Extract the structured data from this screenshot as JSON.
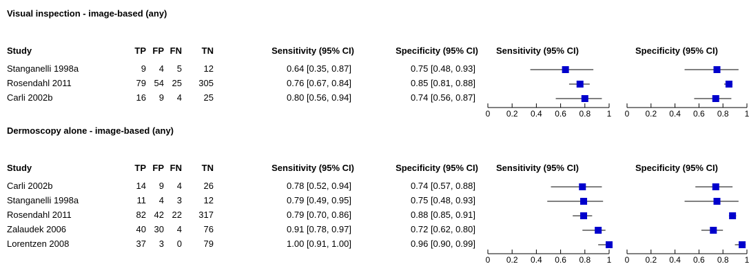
{
  "headers": {
    "study": "Study",
    "tp": "TP",
    "fp": "FP",
    "fn": "FN",
    "tn": "TN",
    "sensitivity": "Sensitivity (95% CI)",
    "specificity": "Specificity (95% CI)"
  },
  "sections": [
    {
      "title": "Visual inspection - image-based (any)",
      "rows": [
        {
          "study": "Stanganelli 1998a",
          "tp": "9",
          "fp": "4",
          "fn": "5",
          "tn": "12",
          "sens_text": "0.64 [0.35, 0.87]",
          "spec_text": "0.75 [0.48, 0.93]"
        },
        {
          "study": "Rosendahl 2011",
          "tp": "79",
          "fp": "54",
          "fn": "25",
          "tn": "305",
          "sens_text": "0.76 [0.67, 0.84]",
          "spec_text": "0.85 [0.81, 0.88]"
        },
        {
          "study": "Carli 2002b",
          "tp": "16",
          "fp": "9",
          "fn": "4",
          "tn": "25",
          "sens_text": "0.80 [0.56, 0.94]",
          "spec_text": "0.74 [0.56, 0.87]"
        }
      ]
    },
    {
      "title": "Dermoscopy alone - image-based (any)",
      "rows": [
        {
          "study": "Carli 2002b",
          "tp": "14",
          "fp": "9",
          "fn": "4",
          "tn": "26",
          "sens_text": "0.78 [0.52, 0.94]",
          "spec_text": "0.74 [0.57, 0.88]"
        },
        {
          "study": "Stanganelli 1998a",
          "tp": "11",
          "fp": "4",
          "fn": "3",
          "tn": "12",
          "sens_text": "0.79 [0.49, 0.95]",
          "spec_text": "0.75 [0.48, 0.93]"
        },
        {
          "study": "Rosendahl 2011",
          "tp": "82",
          "fp": "42",
          "fn": "22",
          "tn": "317",
          "sens_text": "0.79 [0.70, 0.86]",
          "spec_text": "0.88 [0.85, 0.91]"
        },
        {
          "study": "Zalaudek 2006",
          "tp": "40",
          "fp": "30",
          "fn": "4",
          "tn": "76",
          "sens_text": "0.91 [0.78, 0.97]",
          "spec_text": "0.72 [0.62, 0.80]"
        },
        {
          "study": "Lorentzen 2008",
          "tp": "37",
          "fp": "3",
          "fn": "0",
          "tn": "79",
          "sens_text": "1.00 [0.91, 1.00]",
          "spec_text": "0.96 [0.90, 0.99]"
        }
      ]
    }
  ],
  "chart_data": [
    {
      "type": "forest",
      "title": "Visual inspection - image-based (any)",
      "panels": [
        "Sensitivity (95% CI)",
        "Specificity (95% CI)"
      ],
      "xlim": [
        0,
        1
      ],
      "ticks": [
        "0",
        "0.2",
        "0.4",
        "0.6",
        "0.8",
        "1"
      ],
      "marker_color": "#0000cc",
      "studies": [
        "Stanganelli 1998a",
        "Rosendahl 2011",
        "Carli 2002b"
      ],
      "sensitivity": [
        [
          0.64,
          0.35,
          0.87
        ],
        [
          0.76,
          0.67,
          0.84
        ],
        [
          0.8,
          0.56,
          0.94
        ]
      ],
      "specificity": [
        [
          0.75,
          0.48,
          0.93
        ],
        [
          0.85,
          0.81,
          0.88
        ],
        [
          0.74,
          0.56,
          0.87
        ]
      ]
    },
    {
      "type": "forest",
      "title": "Dermoscopy alone - image-based (any)",
      "panels": [
        "Sensitivity (95% CI)",
        "Specificity (95% CI)"
      ],
      "xlim": [
        0,
        1
      ],
      "ticks": [
        "0",
        "0.2",
        "0.4",
        "0.6",
        "0.8",
        "1"
      ],
      "marker_color": "#0000cc",
      "studies": [
        "Carli 2002b",
        "Stanganelli 1998a",
        "Rosendahl 2011",
        "Zalaudek 2006",
        "Lorentzen 2008"
      ],
      "sensitivity": [
        [
          0.78,
          0.52,
          0.94
        ],
        [
          0.79,
          0.49,
          0.95
        ],
        [
          0.79,
          0.7,
          0.86
        ],
        [
          0.91,
          0.78,
          0.97
        ],
        [
          1.0,
          0.91,
          1.0
        ]
      ],
      "specificity": [
        [
          0.74,
          0.57,
          0.88
        ],
        [
          0.75,
          0.48,
          0.93
        ],
        [
          0.88,
          0.85,
          0.91
        ],
        [
          0.72,
          0.62,
          0.8
        ],
        [
          0.96,
          0.9,
          0.99
        ]
      ]
    }
  ]
}
